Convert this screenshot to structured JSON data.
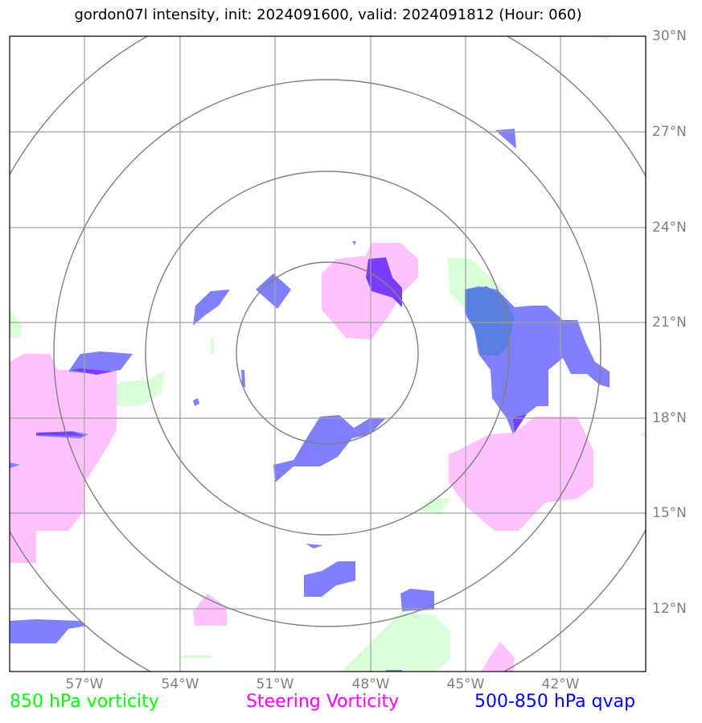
{
  "title": "gordon07l intensity, init: 2024091600, valid: 2024091812 (Hour: 060)",
  "axes": {
    "lon_labels": [
      "57°W",
      "54°W",
      "51°W",
      "48°W",
      "45°W",
      "42°W"
    ],
    "lat_labels": [
      "30°N",
      "27°N",
      "24°N",
      "21°N",
      "18°N",
      "15°N",
      "12°N"
    ],
    "label_color": "#7f7f7f",
    "grid": true,
    "grid_color": "#a0a0a0"
  },
  "legend": {
    "vorticity_850": {
      "label": "850 hPa vorticity",
      "color": "#00ff00"
    },
    "steering_vorticity": {
      "label": "Steering Vorticity",
      "color": "#ff00ff"
    },
    "qvap": {
      "label": "500-850 hPa qvap",
      "color": "#0000ff"
    }
  },
  "range_rings": {
    "count": 4,
    "color": "#808080"
  },
  "fill_colors": {
    "green": "#d9ffd9",
    "pink": "#ffc2ff",
    "blue": "#8080ff",
    "purple": "#7a3cff"
  }
}
